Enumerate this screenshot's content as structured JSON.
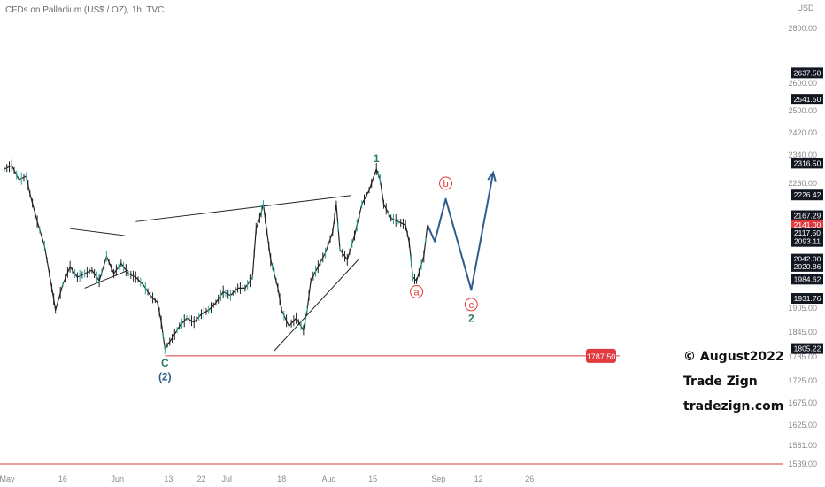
{
  "header": {
    "title": "CFDs on Palladium (US$ / OZ), 1h, TVC"
  },
  "watermark": {
    "line1": "© August2022",
    "line2": "Trade Zign",
    "line3": "tradezign.com"
  },
  "colors": {
    "background": "#ffffff",
    "candle": "#222222",
    "candle_up": "#26a69a",
    "projection": "#2f5d8c",
    "label_red": "#e53935",
    "label_teal": "#2a7a6a",
    "label_blue": "#2f5d8c",
    "badge_black": "#131722",
    "badge_red": "#e0393e"
  },
  "chart_data": {
    "type": "line",
    "description_series": "Palladium 1h price path (approx. close values)",
    "currency": "USD",
    "ylim": [
      1525,
      2850
    ],
    "y_ticks": [
      {
        "label": "2800.00",
        "value": 2800
      },
      {
        "label": "2600.00",
        "value": 2600
      },
      {
        "label": "2500.00",
        "value": 2500
      },
      {
        "label": "2420.00",
        "value": 2420
      },
      {
        "label": "2340.00",
        "value": 2340
      },
      {
        "label": "2260.00",
        "value": 2260
      },
      {
        "label": "1905.00",
        "value": 1905
      },
      {
        "label": "1845.00",
        "value": 1845
      },
      {
        "label": "1785.00",
        "value": 1785
      },
      {
        "label": "1725.00",
        "value": 1725
      },
      {
        "label": "1675.00",
        "value": 1675
      },
      {
        "label": "1625.00",
        "value": 1625
      },
      {
        "label": "1581.00",
        "value": 1581
      },
      {
        "label": "1539.00",
        "value": 1539
      }
    ],
    "price_badges": [
      {
        "label": "2637.50",
        "value": 2637.5,
        "style": "black"
      },
      {
        "label": "2541.50",
        "value": 2541.5,
        "style": "black"
      },
      {
        "label": "2316.50",
        "value": 2316.5,
        "style": "black"
      },
      {
        "label": "2226.42",
        "value": 2226.42,
        "style": "black"
      },
      {
        "label": "2167.29",
        "value": 2167.29,
        "style": "black"
      },
      {
        "label": "2141.00",
        "value": 2141.0,
        "style": "red"
      },
      {
        "label": "2117.50",
        "value": 2117.5,
        "style": "black"
      },
      {
        "label": "2093.11",
        "value": 2093.11,
        "style": "black"
      },
      {
        "label": "2042.00",
        "value": 2042.0,
        "style": "black"
      },
      {
        "label": "2020.86",
        "value": 2020.86,
        "style": "black"
      },
      {
        "label": "1984.62",
        "value": 1984.62,
        "style": "black"
      },
      {
        "label": "1931.76",
        "value": 1931.76,
        "style": "black"
      },
      {
        "label": "1805.22",
        "value": 1805.22,
        "style": "black"
      }
    ],
    "y_axis_unit": "USD",
    "x_ticks": [
      "May",
      "16",
      "Jun",
      "13",
      "22",
      "Jul",
      "18",
      "Aug",
      "15",
      "Sep",
      "12",
      "26"
    ],
    "x_tick_positions": [
      0,
      16,
      31,
      45,
      54,
      61,
      76,
      89,
      101,
      119,
      130,
      144
    ],
    "x_range": [
      0,
      170
    ],
    "price_path": [
      [
        0,
        2300
      ],
      [
        2,
        2310
      ],
      [
        4,
        2270
      ],
      [
        6,
        2280
      ],
      [
        7,
        2230
      ],
      [
        9,
        2150
      ],
      [
        11,
        2080
      ],
      [
        13,
        1960
      ],
      [
        14,
        1900
      ],
      [
        16,
        1970
      ],
      [
        18,
        2020
      ],
      [
        20,
        1990
      ],
      [
        22,
        2000
      ],
      [
        24,
        2010
      ],
      [
        26,
        1980
      ],
      [
        28,
        2050
      ],
      [
        30,
        2000
      ],
      [
        32,
        2030
      ],
      [
        34,
        2000
      ],
      [
        36,
        1990
      ],
      [
        38,
        1970
      ],
      [
        40,
        1940
      ],
      [
        42,
        1920
      ],
      [
        43,
        1870
      ],
      [
        44,
        1805
      ],
      [
        46,
        1830
      ],
      [
        48,
        1860
      ],
      [
        50,
        1880
      ],
      [
        52,
        1870
      ],
      [
        54,
        1890
      ],
      [
        56,
        1900
      ],
      [
        58,
        1920
      ],
      [
        60,
        1950
      ],
      [
        62,
        1940
      ],
      [
        64,
        1960
      ],
      [
        66,
        1960
      ],
      [
        68,
        1990
      ],
      [
        69,
        2130
      ],
      [
        70,
        2160
      ],
      [
        71,
        2200
      ],
      [
        72,
        2120
      ],
      [
        73,
        2040
      ],
      [
        74,
        2000
      ],
      [
        75,
        1960
      ],
      [
        76,
        1900
      ],
      [
        78,
        1860
      ],
      [
        80,
        1880
      ],
      [
        82,
        1850
      ],
      [
        83,
        1900
      ],
      [
        84,
        1980
      ],
      [
        86,
        2020
      ],
      [
        88,
        2060
      ],
      [
        90,
        2120
      ],
      [
        91,
        2200
      ],
      [
        92,
        2070
      ],
      [
        94,
        2040
      ],
      [
        96,
        2110
      ],
      [
        98,
        2200
      ],
      [
        100,
        2240
      ],
      [
        102,
        2300
      ],
      [
        103,
        2270
      ],
      [
        104,
        2200
      ],
      [
        106,
        2160
      ],
      [
        108,
        2150
      ],
      [
        110,
        2140
      ],
      [
        111,
        2090
      ],
      [
        112,
        1990
      ],
      [
        113,
        1980
      ],
      [
        115,
        2050
      ],
      [
        116,
        2141
      ]
    ],
    "annotations": {
      "wave_labels": [
        {
          "text": "1",
          "x": 102,
          "y": 2330,
          "color": "teal",
          "circled": false
        },
        {
          "text": "C",
          "x": 44,
          "y": 1770,
          "color": "teal",
          "circled": false
        },
        {
          "text": "(2)",
          "x": 44,
          "y": 1735,
          "color": "blue",
          "circled": false
        },
        {
          "text": "a",
          "x": 113,
          "y": 1950,
          "color": "red",
          "circled": true
        },
        {
          "text": "b",
          "x": 121,
          "y": 2260,
          "color": "red",
          "circled": true
        },
        {
          "text": "c",
          "x": 128,
          "y": 1915,
          "color": "red",
          "circled": true
        },
        {
          "text": "2",
          "x": 128,
          "y": 1880,
          "color": "teal",
          "circled": false
        }
      ],
      "projection_path": [
        [
          116,
          2141
        ],
        [
          118,
          2093
        ],
        [
          121,
          2215
        ],
        [
          128,
          1955
        ],
        [
          134,
          2290
        ]
      ],
      "level_line": {
        "value": 1787.5,
        "label": "1787.50",
        "from_x": 44
      },
      "bottom_line": {
        "value": 1545
      },
      "trendlines": [
        {
          "from": [
            36,
            2150
          ],
          "to": [
            95,
            2225
          ]
        },
        {
          "from": [
            18,
            2130
          ],
          "to": [
            33,
            2110
          ]
        },
        {
          "from": [
            22,
            1960
          ],
          "to": [
            34,
            2010
          ]
        },
        {
          "from": [
            74,
            1800
          ],
          "to": [
            97,
            2040
          ]
        }
      ]
    }
  }
}
